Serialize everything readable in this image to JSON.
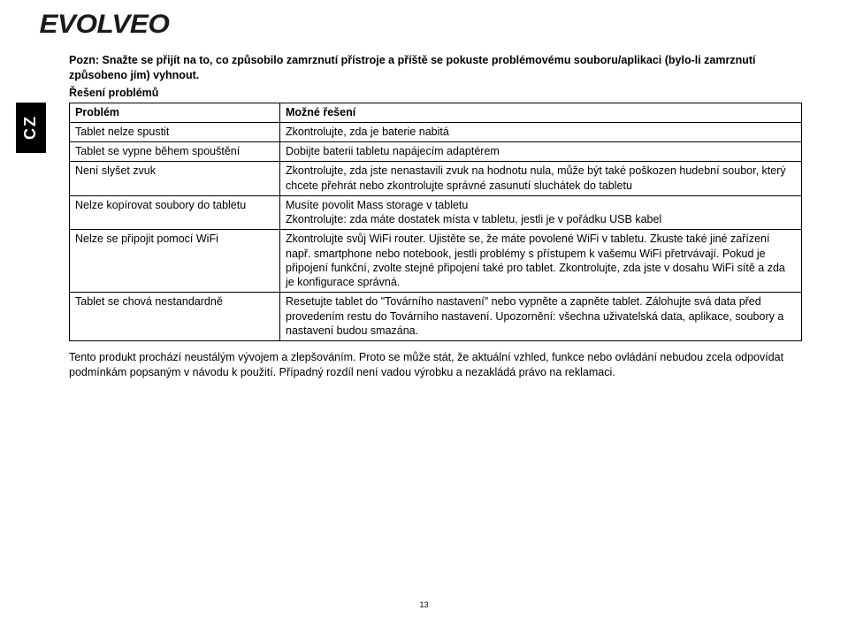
{
  "brand": "EVOLVEO",
  "lang_tab": "CZ",
  "intro": "Pozn: Snažte se přijít na to, co způsobilo zamrznutí přístroje a příště se pokuste problémovému souboru/aplikaci (bylo-li zamrznutí způsobeno jím) vyhnout.",
  "section_title": "Řešení problémů",
  "table": {
    "header": {
      "col1": "Problém",
      "col2": "Možné řešení"
    },
    "rows": [
      {
        "c1": "Tablet nelze spustit",
        "c2": "Zkontrolujte, zda je baterie nabitá"
      },
      {
        "c1": "Tablet se vypne během spouštění",
        "c2": "Dobijte baterii tabletu napájecím adaptérem"
      },
      {
        "c1": "Není slyšet zvuk",
        "c2": "Zkontrolujte, zda jste nenastavili zvuk na hodnotu nula, může být také poškozen hudební soubor, který chcete přehrát nebo zkontrolujte správné zasunutí sluchátek do tabletu"
      },
      {
        "c1": "Nelze kopírovat soubory do tabletu",
        "c2": "Musíte povolit Mass storage v tabletu\nZkontrolujte: zda máte dostatek místa v tabletu, jestli je v pořádku USB kabel"
      },
      {
        "c1": "Nelze se připojit pomocí WiFi",
        "c2": "Zkontrolujte svůj WiFi router. Ujistěte se, že máte povolené WiFi v tabletu. Zkuste také jiné zařízení např. smartphone nebo notebook, jestli problémy s přístupem k vašemu WiFi přetrvávají. Pokud je připojení funkční, zvolte stejné připojení také pro tablet. Zkontrolujte, zda jste v dosahu WiFi sítě a zda je konfigurace správná."
      },
      {
        "c1": "Tablet se chová nestandardně",
        "c2": "Resetujte tablet do \"Továrního nastavení\" nebo vypněte a zapněte tablet. Zálohujte svá data před provedením restu do Továrního nastavení. Upozornění: všechna uživatelská data, aplikace, soubory a nastavení budou smazána."
      }
    ]
  },
  "outro": "Tento produkt prochází neustálým vývojem a zlepšováním. Proto se může stát, že aktuální vzhled, funkce nebo ovládání nebudou zcela odpovídat podmínkám popsaným v návodu k použití. Případný rozdíl není vadou výrobku a nezakládá právo na reklamaci.",
  "page_number": "13",
  "colors": {
    "text": "#000000",
    "background": "#ffffff",
    "tab_bg": "#000000",
    "tab_text": "#ffffff"
  }
}
